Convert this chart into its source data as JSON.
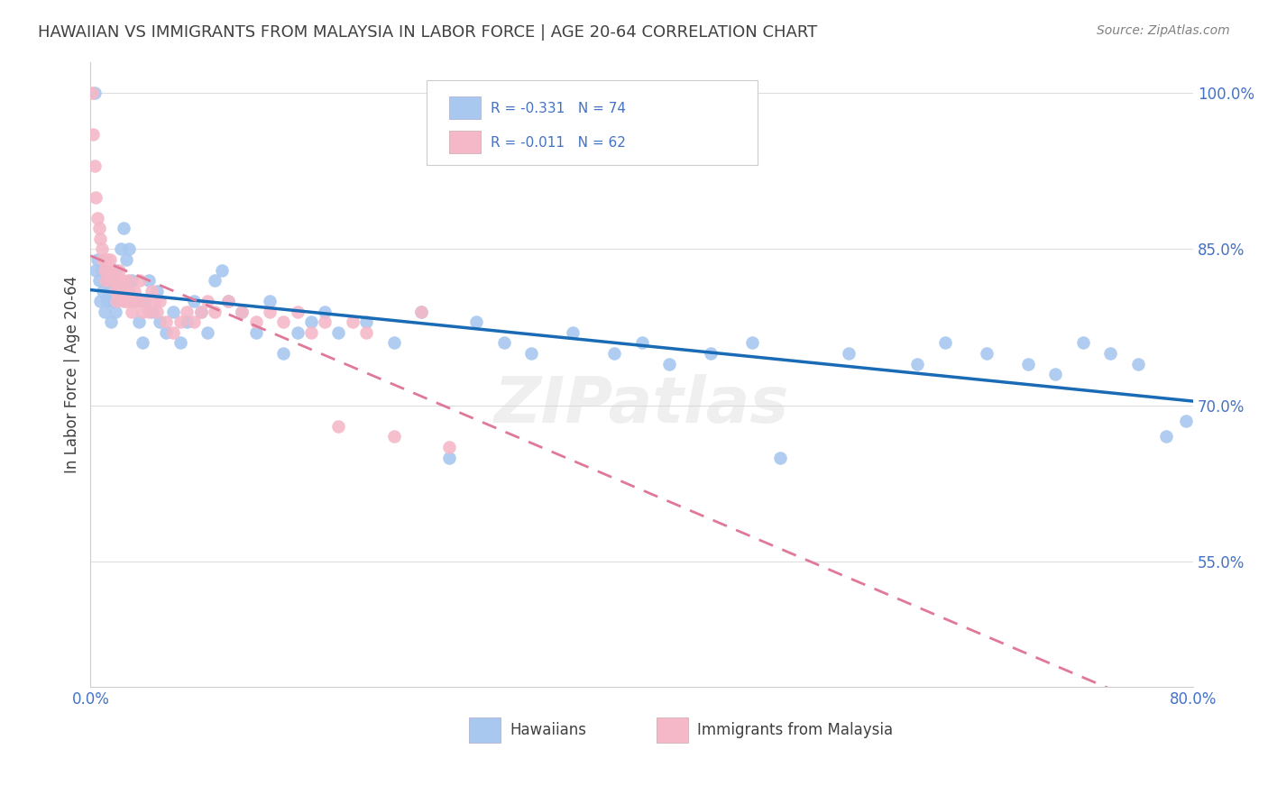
{
  "title": "HAWAIIAN VS IMMIGRANTS FROM MALAYSIA IN LABOR FORCE | AGE 20-64 CORRELATION CHART",
  "source": "Source: ZipAtlas.com",
  "ylabel": "In Labor Force | Age 20-64",
  "xmin": 0.0,
  "xmax": 0.8,
  "ymin": 0.43,
  "ymax": 1.03,
  "yticks": [
    0.55,
    0.7,
    0.85,
    1.0
  ],
  "ytick_labels": [
    "55.0%",
    "70.0%",
    "85.0%",
    "100.0%"
  ],
  "xticks": [
    0.0,
    0.1,
    0.2,
    0.3,
    0.4,
    0.5,
    0.6,
    0.7,
    0.8
  ],
  "xtick_labels": [
    "0.0%",
    "",
    "",
    "",
    "",
    "",
    "",
    "",
    "80.0%"
  ],
  "hawaiians_color": "#a8c8f0",
  "malaysia_color": "#f4b8c8",
  "trend_blue": "#1a6bb5",
  "trend_pink": "#e07898",
  "R_hawaiians": -0.331,
  "N_hawaiians": 74,
  "R_malaysia": -0.011,
  "N_malaysia": 62,
  "hawaiians_x": [
    0.003,
    0.004,
    0.005,
    0.006,
    0.007,
    0.008,
    0.009,
    0.01,
    0.011,
    0.012,
    0.013,
    0.014,
    0.015,
    0.016,
    0.017,
    0.018,
    0.019,
    0.02,
    0.022,
    0.024,
    0.026,
    0.028,
    0.03,
    0.032,
    0.035,
    0.038,
    0.04,
    0.042,
    0.045,
    0.048,
    0.05,
    0.055,
    0.06,
    0.065,
    0.07,
    0.075,
    0.08,
    0.085,
    0.09,
    0.095,
    0.1,
    0.11,
    0.12,
    0.13,
    0.14,
    0.15,
    0.16,
    0.17,
    0.18,
    0.2,
    0.22,
    0.24,
    0.26,
    0.28,
    0.3,
    0.32,
    0.35,
    0.38,
    0.4,
    0.42,
    0.45,
    0.48,
    0.5,
    0.55,
    0.6,
    0.62,
    0.65,
    0.68,
    0.7,
    0.72,
    0.74,
    0.76,
    0.78,
    0.795
  ],
  "hawaiians_y": [
    1.0,
    0.83,
    0.84,
    0.82,
    0.8,
    0.83,
    0.81,
    0.79,
    0.82,
    0.8,
    0.81,
    0.8,
    0.78,
    0.82,
    0.8,
    0.79,
    0.83,
    0.81,
    0.85,
    0.87,
    0.84,
    0.85,
    0.82,
    0.8,
    0.78,
    0.76,
    0.8,
    0.82,
    0.79,
    0.81,
    0.78,
    0.77,
    0.79,
    0.76,
    0.78,
    0.8,
    0.79,
    0.77,
    0.82,
    0.83,
    0.8,
    0.79,
    0.77,
    0.8,
    0.75,
    0.77,
    0.78,
    0.79,
    0.77,
    0.78,
    0.76,
    0.79,
    0.65,
    0.78,
    0.76,
    0.75,
    0.77,
    0.75,
    0.76,
    0.74,
    0.75,
    0.76,
    0.65,
    0.75,
    0.74,
    0.76,
    0.75,
    0.74,
    0.73,
    0.76,
    0.75,
    0.74,
    0.67,
    0.685
  ],
  "malaysia_x": [
    0.001,
    0.002,
    0.003,
    0.004,
    0.005,
    0.006,
    0.007,
    0.008,
    0.009,
    0.01,
    0.011,
    0.012,
    0.013,
    0.014,
    0.015,
    0.016,
    0.017,
    0.018,
    0.019,
    0.02,
    0.021,
    0.022,
    0.023,
    0.024,
    0.025,
    0.026,
    0.027,
    0.028,
    0.029,
    0.03,
    0.032,
    0.034,
    0.036,
    0.038,
    0.04,
    0.042,
    0.044,
    0.046,
    0.048,
    0.05,
    0.055,
    0.06,
    0.065,
    0.07,
    0.075,
    0.08,
    0.085,
    0.09,
    0.1,
    0.11,
    0.12,
    0.13,
    0.14,
    0.15,
    0.16,
    0.17,
    0.18,
    0.19,
    0.2,
    0.22,
    0.24,
    0.26
  ],
  "malaysia_y": [
    1.0,
    0.96,
    0.93,
    0.9,
    0.88,
    0.87,
    0.86,
    0.85,
    0.84,
    0.83,
    0.82,
    0.84,
    0.83,
    0.84,
    0.82,
    0.83,
    0.82,
    0.81,
    0.8,
    0.82,
    0.83,
    0.81,
    0.82,
    0.8,
    0.81,
    0.8,
    0.82,
    0.81,
    0.8,
    0.79,
    0.81,
    0.8,
    0.82,
    0.79,
    0.8,
    0.79,
    0.81,
    0.8,
    0.79,
    0.8,
    0.78,
    0.77,
    0.78,
    0.79,
    0.78,
    0.79,
    0.8,
    0.79,
    0.8,
    0.79,
    0.78,
    0.79,
    0.78,
    0.79,
    0.77,
    0.78,
    0.68,
    0.78,
    0.77,
    0.67,
    0.79,
    0.66
  ],
  "background_color": "#ffffff",
  "grid_color": "#dddddd",
  "axis_color": "#4472c4",
  "title_color": "#404040",
  "source_color": "#808080",
  "legend_label_1": "Hawaiians",
  "legend_label_2": "Immigrants from Malaysia",
  "watermark": "ZIPatlas"
}
